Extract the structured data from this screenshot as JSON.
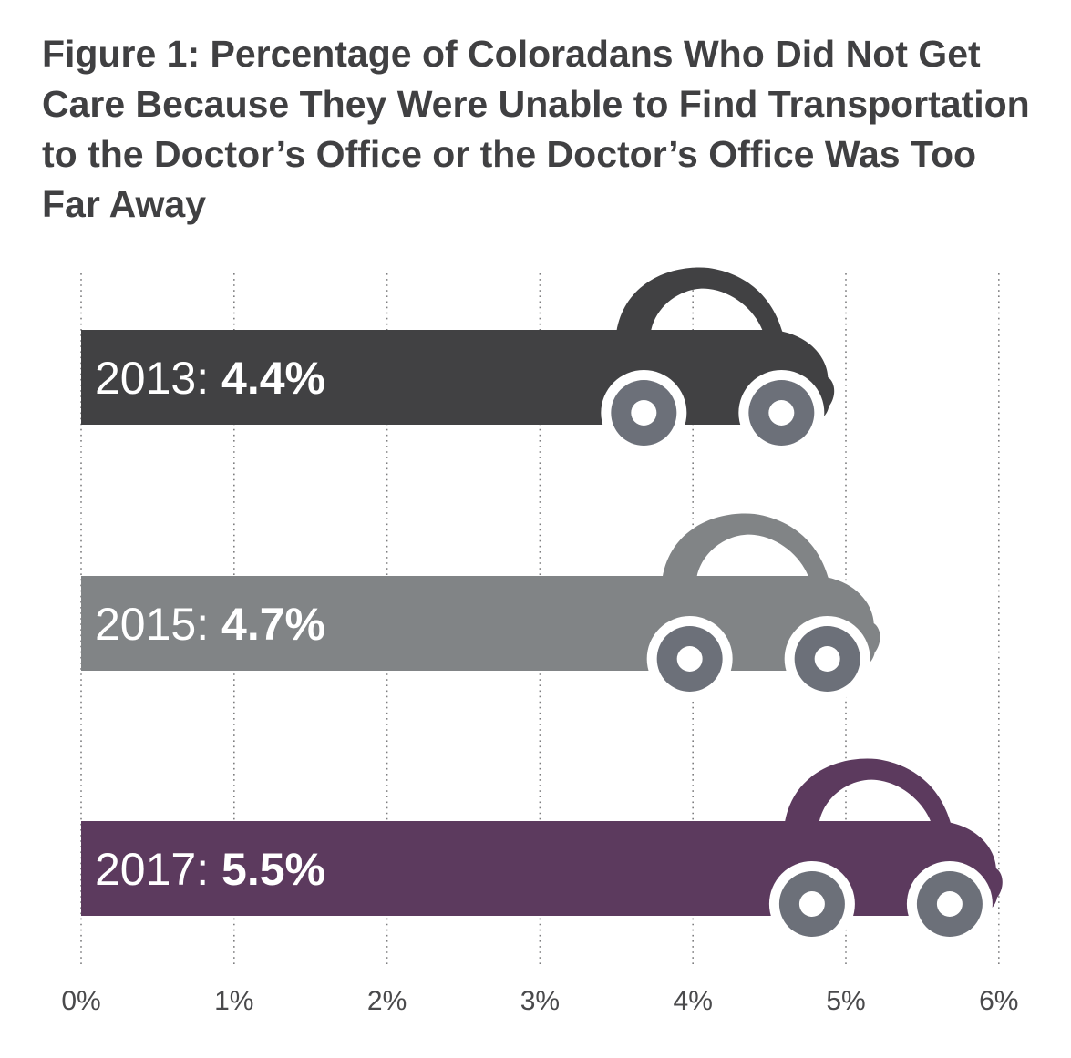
{
  "chart_data": {
    "type": "bar",
    "orientation": "horizontal",
    "title": "Figure 1: Percentage of Coloradans Who Did Not Get Care Because They Were Unable to Find Transportation to the Doctor’s Office or the Doctor’s Office Was Too Far Away",
    "categories": [
      "2013",
      "2015",
      "2017"
    ],
    "values": [
      4.4,
      4.7,
      5.5
    ],
    "labels": [
      {
        "year": "2013:",
        "value": "4.4%"
      },
      {
        "year": "2015:",
        "value": "4.7%"
      },
      {
        "year": "2017:",
        "value": "5.5%"
      }
    ],
    "colors": [
      "#414143",
      "#818486",
      "#5c3a5e"
    ],
    "wheel_color": "#6c7079",
    "xlim": [
      0,
      6
    ],
    "xticks": [
      "0%",
      "1%",
      "2%",
      "3%",
      "4%",
      "5%",
      "6%"
    ],
    "grid": "vertical dotted",
    "bar_style": "car-shaped bar ending"
  }
}
